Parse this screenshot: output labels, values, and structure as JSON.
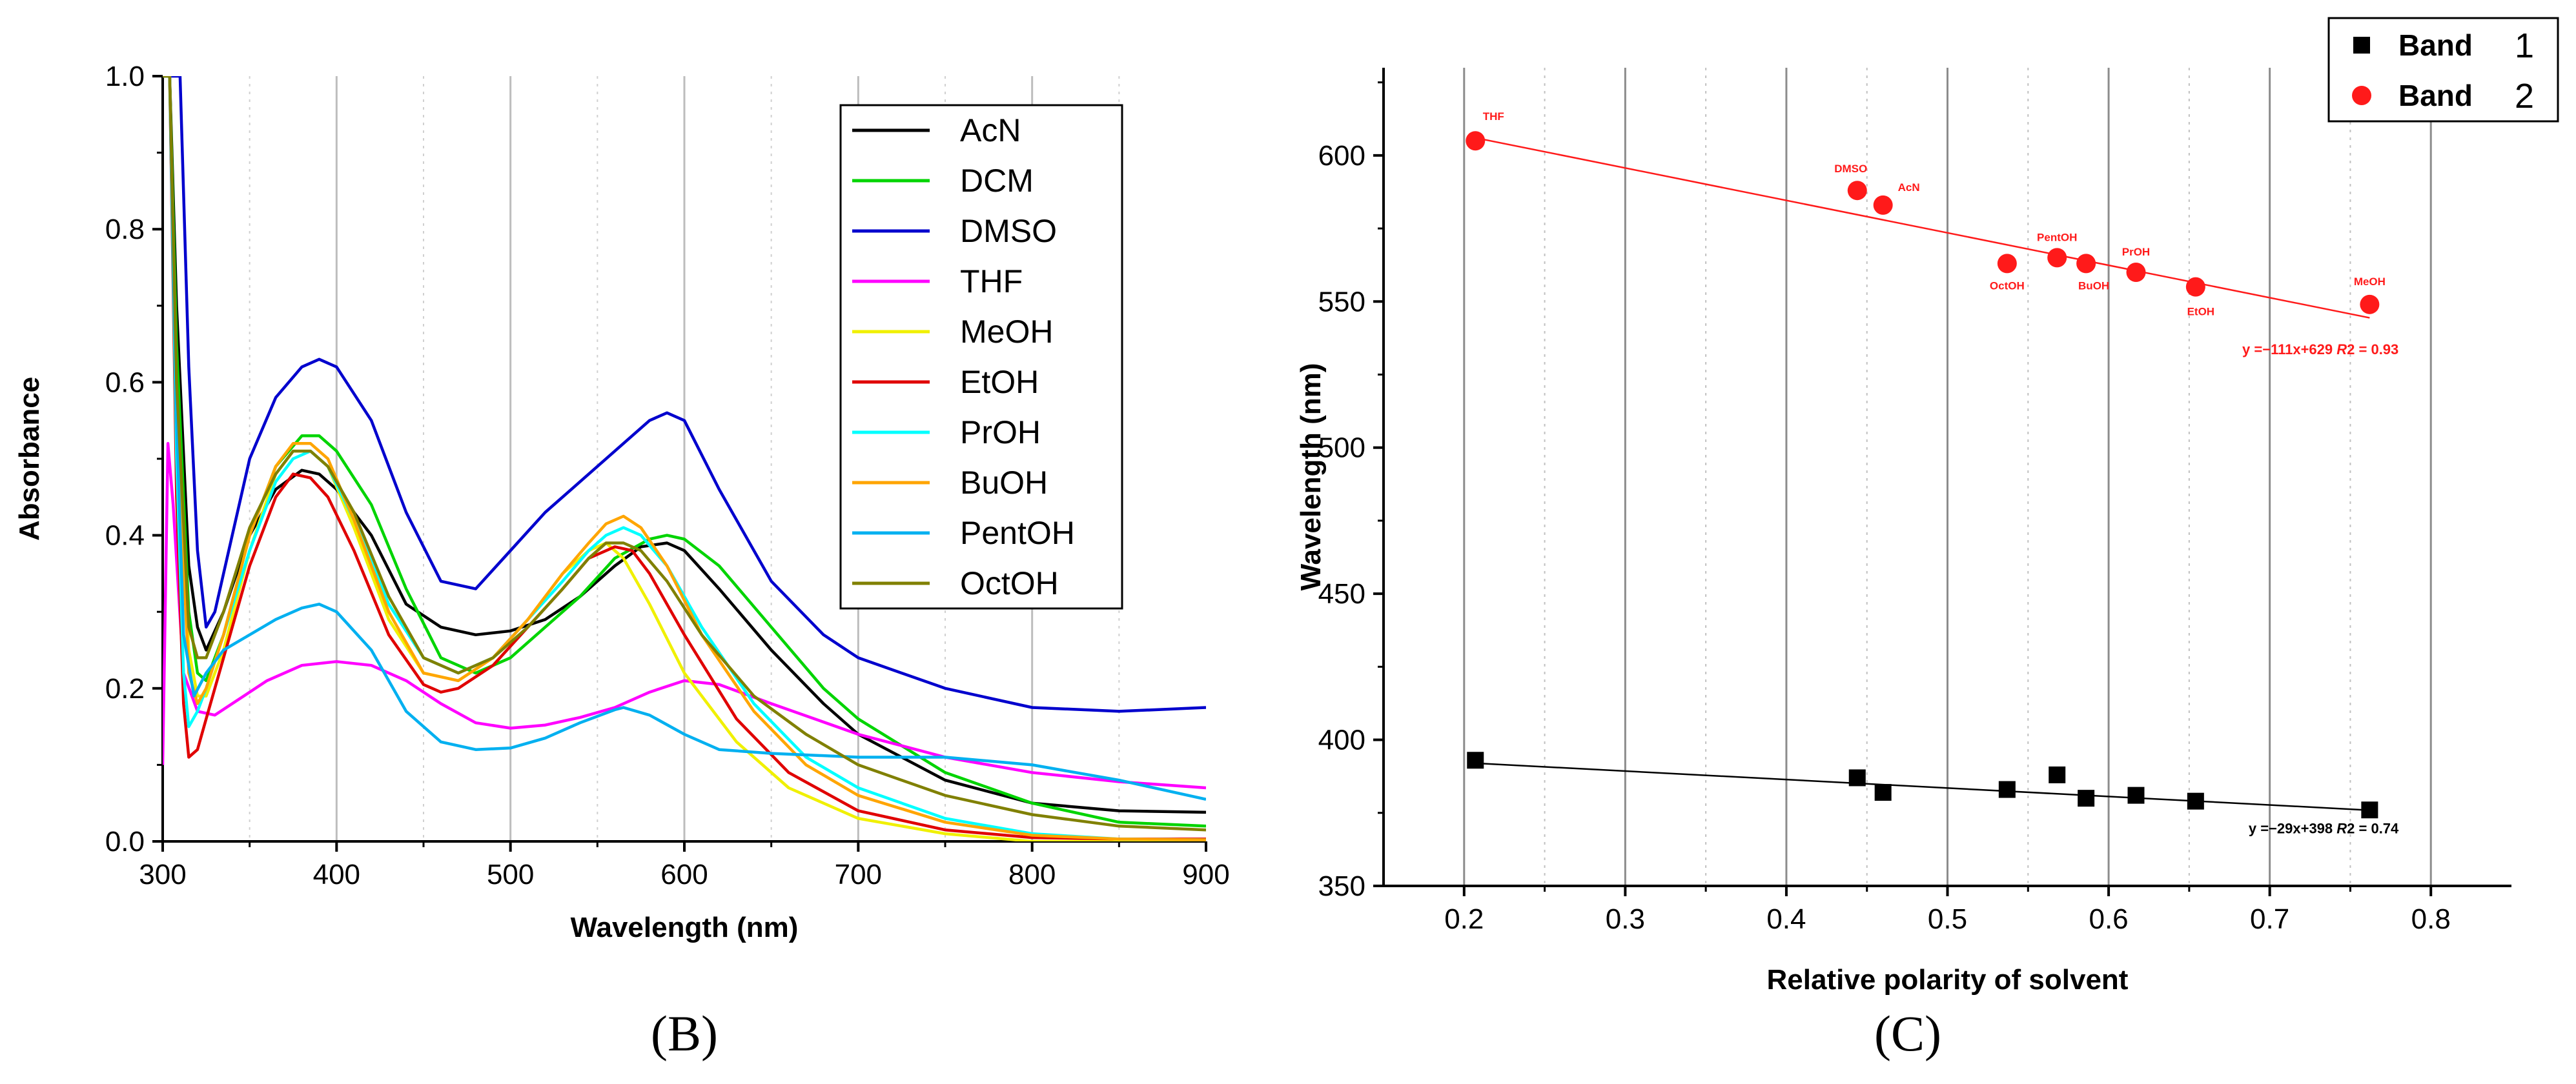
{
  "chart_data": [
    {
      "type": "line",
      "panel_label": "B",
      "title": "",
      "xlabel": "Wavelength (nm)",
      "ylabel": "Absorbance",
      "xlim": [
        300,
        900
      ],
      "ylim": [
        0,
        1.0
      ],
      "xticks": [
        "300",
        "400",
        "500",
        "600",
        "700",
        "800",
        "900"
      ],
      "yticks": [
        "0.0",
        "0.2",
        "0.4",
        "0.6",
        "0.8",
        "1.0"
      ],
      "legend_position": "top-right",
      "series": [
        {
          "name": "AcN",
          "color": "#000000",
          "x": [
            300,
            304,
            308,
            315,
            320,
            325,
            335,
            350,
            365,
            380,
            390,
            400,
            420,
            440,
            460,
            480,
            500,
            520,
            540,
            560,
            575,
            590,
            600,
            620,
            650,
            680,
            700,
            750,
            800,
            850,
            900
          ],
          "y": [
            1.0,
            1.0,
            0.7,
            0.36,
            0.28,
            0.25,
            0.3,
            0.4,
            0.46,
            0.485,
            0.48,
            0.46,
            0.4,
            0.31,
            0.28,
            0.27,
            0.275,
            0.29,
            0.32,
            0.36,
            0.385,
            0.39,
            0.38,
            0.33,
            0.25,
            0.18,
            0.14,
            0.08,
            0.05,
            0.04,
            0.038
          ]
        },
        {
          "name": "DCM",
          "color": "#00d400",
          "x": [
            300,
            304,
            308,
            315,
            320,
            325,
            335,
            350,
            365,
            380,
            390,
            400,
            420,
            440,
            460,
            480,
            500,
            520,
            540,
            560,
            580,
            590,
            600,
            620,
            650,
            680,
            700,
            750,
            800,
            850,
            900
          ],
          "y": [
            1.0,
            1.0,
            0.65,
            0.3,
            0.22,
            0.21,
            0.27,
            0.4,
            0.49,
            0.53,
            0.53,
            0.51,
            0.44,
            0.33,
            0.24,
            0.22,
            0.24,
            0.28,
            0.32,
            0.37,
            0.395,
            0.4,
            0.395,
            0.36,
            0.28,
            0.2,
            0.16,
            0.09,
            0.05,
            0.025,
            0.02
          ]
        },
        {
          "name": "DMSO",
          "color": "#0000cd",
          "x": [
            300,
            306,
            310,
            315,
            320,
            325,
            330,
            340,
            350,
            365,
            380,
            390,
            400,
            420,
            440,
            460,
            480,
            500,
            520,
            540,
            560,
            580,
            590,
            600,
            620,
            650,
            680,
            700,
            750,
            800,
            850,
            900
          ],
          "y": [
            1.0,
            1.0,
            1.0,
            0.62,
            0.38,
            0.28,
            0.3,
            0.4,
            0.5,
            0.58,
            0.62,
            0.63,
            0.62,
            0.55,
            0.43,
            0.34,
            0.33,
            0.38,
            0.43,
            0.47,
            0.51,
            0.55,
            0.56,
            0.55,
            0.46,
            0.34,
            0.27,
            0.24,
            0.2,
            0.175,
            0.17,
            0.175
          ]
        },
        {
          "name": "THF",
          "color": "#ff00ff",
          "x": [
            300,
            303,
            306,
            312,
            320,
            330,
            340,
            360,
            380,
            400,
            420,
            440,
            460,
            480,
            500,
            520,
            540,
            560,
            580,
            600,
            620,
            650,
            700,
            750,
            800,
            850,
            900
          ],
          "y": [
            0.1,
            0.52,
            0.44,
            0.22,
            0.17,
            0.165,
            0.18,
            0.21,
            0.23,
            0.235,
            0.23,
            0.21,
            0.18,
            0.155,
            0.148,
            0.152,
            0.162,
            0.175,
            0.195,
            0.21,
            0.205,
            0.18,
            0.14,
            0.11,
            0.09,
            0.078,
            0.07
          ]
        },
        {
          "name": "MeOH",
          "color": "#f0f000",
          "x": [
            300,
            304,
            308,
            315,
            320,
            325,
            335,
            350,
            365,
            375,
            385,
            395,
            410,
            430,
            450,
            470,
            490,
            510,
            530,
            545,
            555,
            565,
            580,
            600,
            630,
            660,
            700,
            750,
            800,
            850,
            900
          ],
          "y": [
            1.0,
            1.0,
            0.58,
            0.25,
            0.19,
            0.19,
            0.25,
            0.38,
            0.48,
            0.51,
            0.51,
            0.49,
            0.41,
            0.29,
            0.22,
            0.21,
            0.24,
            0.29,
            0.35,
            0.38,
            0.39,
            0.37,
            0.31,
            0.22,
            0.13,
            0.07,
            0.03,
            0.01,
            0.0,
            0.0,
            0.0
          ]
        },
        {
          "name": "EtOH",
          "color": "#e00000",
          "x": [
            300,
            304,
            308,
            312,
            315,
            320,
            325,
            335,
            350,
            365,
            375,
            385,
            395,
            410,
            430,
            450,
            460,
            470,
            490,
            510,
            530,
            545,
            560,
            570,
            580,
            600,
            630,
            660,
            700,
            750,
            800,
            850,
            900
          ],
          "y": [
            1.0,
            1.0,
            0.45,
            0.18,
            0.11,
            0.12,
            0.16,
            0.24,
            0.36,
            0.45,
            0.48,
            0.475,
            0.45,
            0.38,
            0.27,
            0.205,
            0.195,
            0.2,
            0.23,
            0.28,
            0.33,
            0.37,
            0.385,
            0.38,
            0.35,
            0.27,
            0.16,
            0.09,
            0.04,
            0.015,
            0.005,
            0.003,
            0.003
          ]
        },
        {
          "name": "PrOH",
          "color": "#00ffff",
          "x": [
            300,
            304,
            308,
            312,
            315,
            320,
            325,
            335,
            350,
            365,
            375,
            385,
            395,
            410,
            430,
            450,
            470,
            490,
            510,
            530,
            545,
            555,
            565,
            575,
            590,
            610,
            640,
            670,
            700,
            750,
            800,
            850,
            900
          ],
          "y": [
            1.0,
            1.0,
            0.5,
            0.22,
            0.15,
            0.17,
            0.2,
            0.27,
            0.38,
            0.47,
            0.5,
            0.51,
            0.49,
            0.42,
            0.31,
            0.24,
            0.22,
            0.24,
            0.29,
            0.34,
            0.38,
            0.4,
            0.41,
            0.4,
            0.36,
            0.28,
            0.18,
            0.11,
            0.07,
            0.03,
            0.01,
            0.003,
            0.002
          ]
        },
        {
          "name": "BuOH",
          "color": "#ffa500",
          "x": [
            300,
            304,
            308,
            315,
            320,
            325,
            335,
            350,
            365,
            375,
            385,
            395,
            410,
            430,
            450,
            470,
            490,
            510,
            530,
            545,
            555,
            565,
            575,
            590,
            610,
            640,
            670,
            700,
            750,
            800,
            850,
            900
          ],
          "y": [
            1.0,
            1.0,
            0.55,
            0.22,
            0.18,
            0.2,
            0.27,
            0.4,
            0.49,
            0.52,
            0.52,
            0.5,
            0.42,
            0.3,
            0.22,
            0.21,
            0.24,
            0.29,
            0.35,
            0.39,
            0.415,
            0.425,
            0.41,
            0.36,
            0.27,
            0.17,
            0.1,
            0.06,
            0.025,
            0.008,
            0.003,
            0.002
          ]
        },
        {
          "name": "PentOH",
          "color": "#00b0f0",
          "x": [
            300,
            304,
            308,
            312,
            318,
            325,
            335,
            350,
            365,
            380,
            390,
            400,
            420,
            440,
            460,
            480,
            500,
            520,
            540,
            560,
            565,
            580,
            600,
            620,
            650,
            700,
            750,
            800,
            850,
            900
          ],
          "y": [
            1.0,
            1.0,
            0.55,
            0.27,
            0.19,
            0.22,
            0.25,
            0.27,
            0.29,
            0.305,
            0.31,
            0.3,
            0.25,
            0.17,
            0.13,
            0.12,
            0.122,
            0.135,
            0.155,
            0.172,
            0.175,
            0.165,
            0.14,
            0.12,
            0.115,
            0.11,
            0.11,
            0.1,
            0.08,
            0.055
          ]
        },
        {
          "name": "OctOH",
          "color": "#808000",
          "x": [
            300,
            304,
            308,
            315,
            320,
            325,
            335,
            350,
            365,
            375,
            385,
            395,
            410,
            430,
            450,
            470,
            490,
            510,
            530,
            545,
            555,
            565,
            575,
            590,
            610,
            640,
            670,
            700,
            750,
            800,
            850,
            900
          ],
          "y": [
            1.0,
            1.0,
            0.6,
            0.28,
            0.24,
            0.24,
            0.3,
            0.41,
            0.48,
            0.51,
            0.51,
            0.49,
            0.43,
            0.32,
            0.24,
            0.22,
            0.24,
            0.28,
            0.33,
            0.37,
            0.39,
            0.39,
            0.38,
            0.34,
            0.27,
            0.19,
            0.14,
            0.1,
            0.06,
            0.035,
            0.02,
            0.015
          ]
        }
      ]
    },
    {
      "type": "scatter",
      "panel_label": "C",
      "title": "",
      "xlabel": "Relative polarity of solvent",
      "ylabel": "Wavelength (nm)",
      "xlim": [
        0.15,
        0.85
      ],
      "ylim": [
        350,
        630
      ],
      "xticks": [
        "0.2",
        "0.3",
        "0.4",
        "0.5",
        "0.6",
        "0.7",
        "0.8"
      ],
      "yticks": [
        "350",
        "400",
        "450",
        "500",
        "550",
        "600"
      ],
      "legend_position": "top-right",
      "series": [
        {
          "name": "Band 1",
          "legend_word": "Band",
          "legend_number": "1",
          "marker": "square",
          "color": "#000000",
          "x": [
            0.207,
            0.444,
            0.46,
            0.537,
            0.568,
            0.586,
            0.617,
            0.654,
            0.762
          ],
          "y": [
            393,
            387,
            382,
            383,
            388,
            380,
            381,
            379,
            376
          ],
          "fit": {
            "slope": -29,
            "intercept": 398,
            "x_range": [
              0.207,
              0.762
            ],
            "equation": "y =−29x+398",
            "r2_label": "R",
            "r2_value": "2 = 0.74"
          }
        },
        {
          "name": "Band 2",
          "legend_word": "Band",
          "legend_number": "2",
          "marker": "circle",
          "color": "#ff1a1a",
          "x": [
            0.207,
            0.444,
            0.46,
            0.537,
            0.568,
            0.586,
            0.617,
            0.654,
            0.762
          ],
          "y": [
            605,
            588,
            583,
            563,
            565,
            563,
            560,
            555,
            549
          ],
          "labels": [
            "THF",
            "DMSO",
            "AcN",
            "OctOH",
            "PentOH",
            "BuOH",
            "PrOH",
            "EtOH",
            "MeOH"
          ],
          "fit": {
            "slope": -111,
            "intercept": 629,
            "x_range": [
              0.207,
              0.762
            ],
            "equation": "y =−111x+629",
            "r2_label": "R",
            "r2_value": "2 = 0.93"
          }
        }
      ]
    }
  ]
}
